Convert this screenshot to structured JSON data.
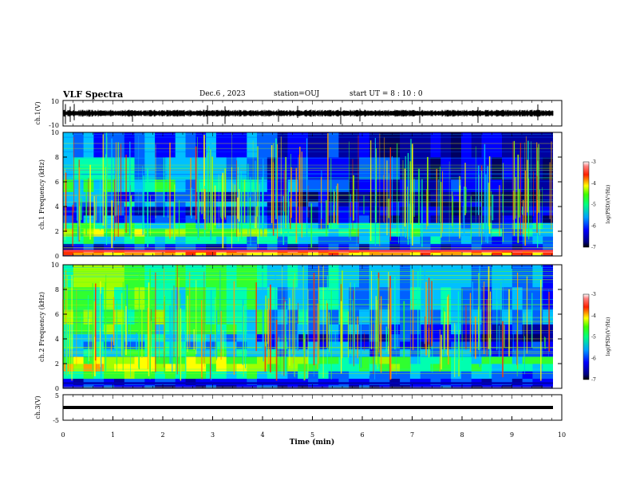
{
  "header": {
    "title": "VLF Spectra",
    "date": "Dec.6 , 2023",
    "station": "station=OUJ",
    "start": "start UT = 8 : 10 : 0"
  },
  "colors": {
    "scale": [
      "#000066",
      "#0000cc",
      "#0066ff",
      "#00ccff",
      "#00ff99",
      "#33ff33",
      "#ccff00",
      "#ffcc00",
      "#ff6600",
      "#ff0000",
      "#ff6666",
      "#ffcccc"
    ],
    "trace": "#000000"
  },
  "chart_data": [
    {
      "type": "line",
      "ylabel": "ch.1(V)",
      "ylim": [
        -10,
        10
      ],
      "yticks": [
        "10",
        "-10"
      ],
      "description_of_signal": "noisy broadband trace with occasional spikes"
    },
    {
      "type": "heatmap",
      "ylabel": "ch.1 Frequency (kHz)",
      "ylim": [
        0,
        10
      ],
      "yticks": [
        "0",
        "2",
        "4",
        "6",
        "8",
        "10"
      ],
      "colorbar_label": "log(PSD)(V²/Hz)",
      "colorbar_range": [
        -7,
        -3
      ],
      "colorbar_ticks": [
        "-3",
        "-4",
        "-5",
        "-6",
        "-7"
      ]
    },
    {
      "type": "heatmap",
      "ylabel": "ch.2 Frequency (kHz)",
      "ylim": [
        0,
        10
      ],
      "yticks": [
        "0",
        "2",
        "4",
        "6",
        "8",
        "10"
      ],
      "colorbar_label": "log(PSD)(V²/Hz)",
      "colorbar_range": [
        -7,
        -3
      ],
      "colorbar_ticks": [
        "-3",
        "-4",
        "-5",
        "-6",
        "-7"
      ]
    },
    {
      "type": "line",
      "ylabel": "ch.3(V)",
      "ylim": [
        -5,
        5
      ],
      "yticks": [
        "5",
        "-5"
      ],
      "xlabel": "Time (min)",
      "xlim": [
        0,
        10
      ],
      "xticks": [
        "0",
        "1",
        "2",
        "3",
        "4",
        "5",
        "6",
        "7",
        "8",
        "9",
        "10"
      ]
    }
  ]
}
